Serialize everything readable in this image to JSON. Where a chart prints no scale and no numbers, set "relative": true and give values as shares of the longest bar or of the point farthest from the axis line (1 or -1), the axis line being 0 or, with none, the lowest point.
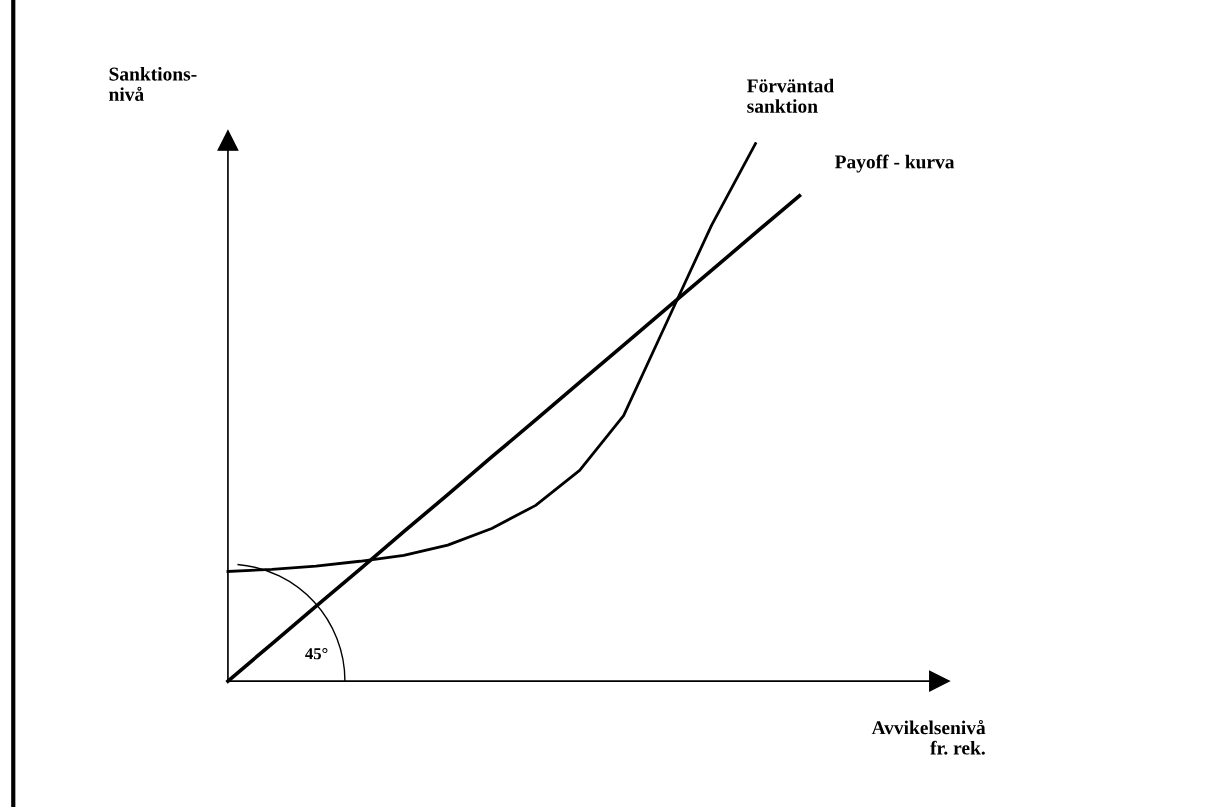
{
  "chart_data": {
    "type": "line",
    "relative": true,
    "ylabel": "Sanktions-\nnivå",
    "xlabel": "Avvikelsenivå\nfr. rek.",
    "annotations": [
      "45°"
    ],
    "categories": [
      null,
      null,
      null,
      null,
      null,
      null,
      null,
      null,
      null,
      null,
      null,
      null,
      null,
      null
    ],
    "series": [
      {
        "name": "Förväntad\nsanktion",
        "color": "#000000",
        "values": [
          0.204,
          0.208,
          0.214,
          0.223,
          0.234,
          0.253,
          0.284,
          0.327,
          0.392,
          0.494,
          0.671,
          0.848,
          1.0,
          null
        ]
      },
      {
        "name": "Payoff - kurva",
        "color": "#000000",
        "values": [
          0,
          0.0695,
          0.139,
          0.208,
          0.278,
          0.347,
          0.417,
          0.486,
          0.556,
          0.625,
          0.695,
          0.764,
          0.834,
          0.903
        ]
      }
    ]
  }
}
